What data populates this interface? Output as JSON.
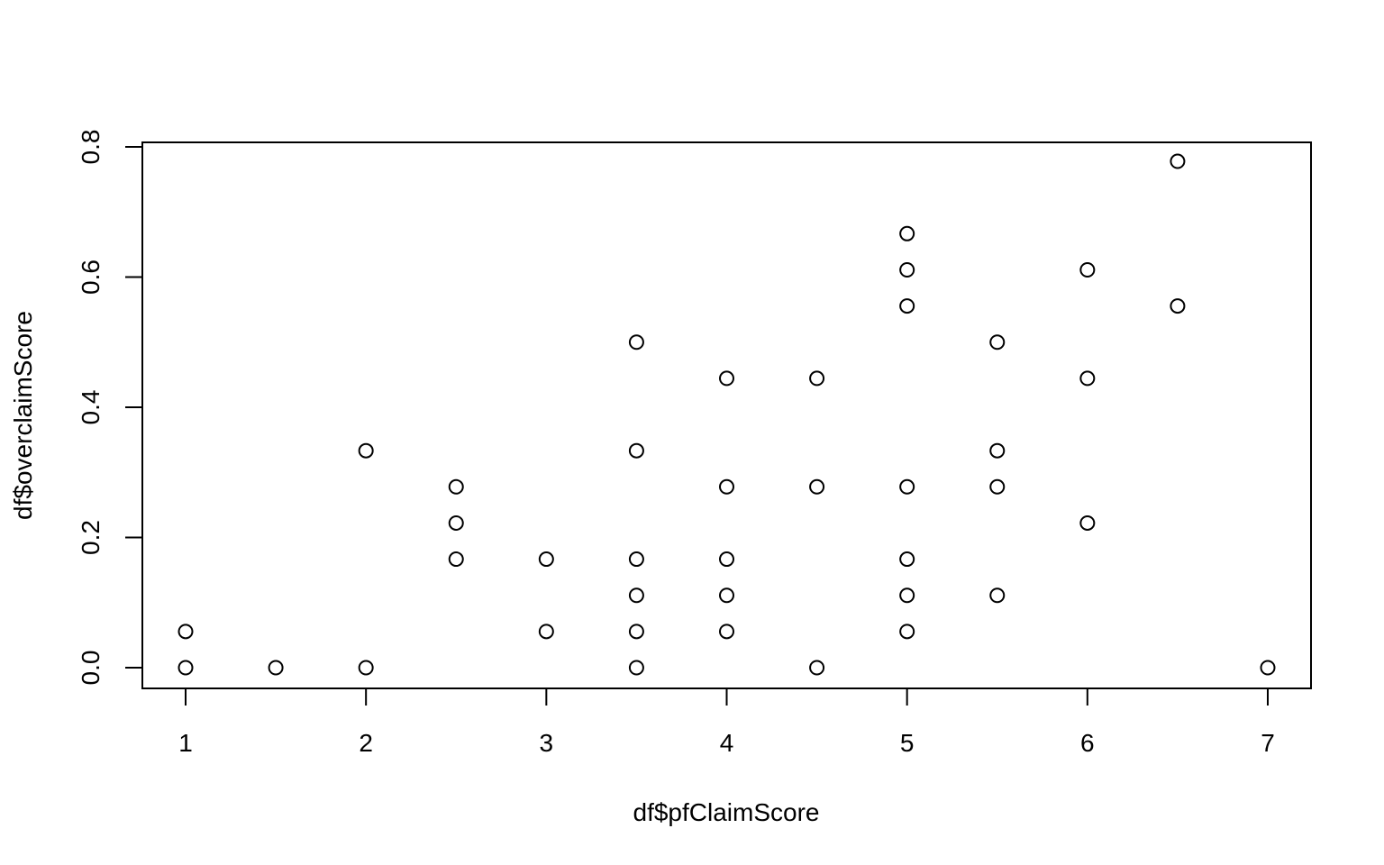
{
  "chart_data": {
    "type": "scatter",
    "title": "",
    "xlabel": "df$pfClaimScore",
    "ylabel": "df$overclaimScore",
    "xlim": [
      1,
      7
    ],
    "ylim": [
      0,
      0.8
    ],
    "x_ticks": [
      "1",
      "2",
      "3",
      "4",
      "5",
      "6",
      "7"
    ],
    "y_ticks": [
      "0.0",
      "0.2",
      "0.4",
      "0.6",
      "0.8"
    ],
    "grid": false,
    "marker": "open-circle",
    "points": [
      [
        1,
        0.0556
      ],
      [
        1,
        0
      ],
      [
        1.5,
        0
      ],
      [
        2,
        0.3333
      ],
      [
        2,
        0
      ],
      [
        2.5,
        0.2778
      ],
      [
        2.5,
        0.2222
      ],
      [
        2.5,
        0.1667
      ],
      [
        3,
        0.1667
      ],
      [
        3,
        0.0556
      ],
      [
        3.5,
        0.5
      ],
      [
        3.5,
        0.3333
      ],
      [
        3.5,
        0.1667
      ],
      [
        3.5,
        0.1111
      ],
      [
        3.5,
        0.0556
      ],
      [
        3.5,
        0
      ],
      [
        4,
        0.4444
      ],
      [
        4,
        0.2778
      ],
      [
        4,
        0.1667
      ],
      [
        4,
        0.1111
      ],
      [
        4,
        0.0556
      ],
      [
        4.5,
        0.4444
      ],
      [
        4.5,
        0.2778
      ],
      [
        4.5,
        0
      ],
      [
        5,
        0.6667
      ],
      [
        5,
        0.6111
      ],
      [
        5,
        0.5556
      ],
      [
        5,
        0.2778
      ],
      [
        5,
        0.1667
      ],
      [
        5,
        0.1111
      ],
      [
        5,
        0.0556
      ],
      [
        5.5,
        0.5
      ],
      [
        5.5,
        0.3333
      ],
      [
        5.5,
        0.2778
      ],
      [
        5.5,
        0.1111
      ],
      [
        6,
        0.6111
      ],
      [
        6,
        0.4444
      ],
      [
        6,
        0.2222
      ],
      [
        6.5,
        0.7778
      ],
      [
        6.5,
        0.5556
      ],
      [
        7,
        0
      ]
    ]
  }
}
